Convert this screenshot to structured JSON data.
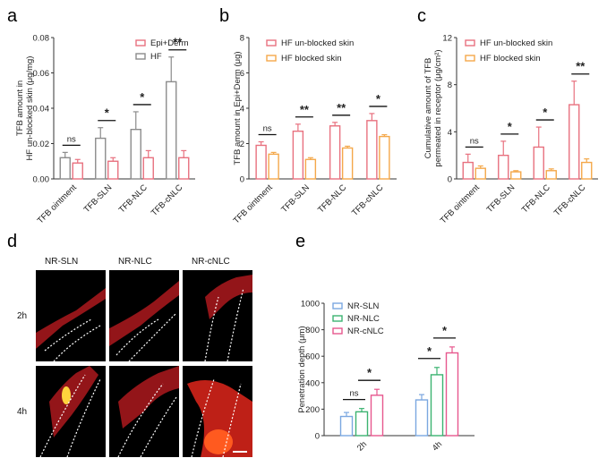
{
  "panel_letters": [
    "a",
    "b",
    "c",
    "d",
    "e"
  ],
  "colors": {
    "red": "#e8717f",
    "gray": "#8c8c8c",
    "orange": "#f4a84a",
    "blue": "#7ba7e0",
    "green": "#3cb371",
    "pink": "#e7578e"
  },
  "chart_data": [
    {
      "panel": "a",
      "type": "bar",
      "categories": [
        "TFB ointment",
        "TFB-SLN",
        "TFB-NLC",
        "TFB-cNLC"
      ],
      "series": [
        {
          "name": "HF",
          "values": [
            0.012,
            0.023,
            0.028,
            0.055
          ],
          "errors": [
            0.003,
            0.006,
            0.01,
            0.014
          ],
          "color": "gray"
        },
        {
          "name": "Epi+Derm",
          "values": [
            0.009,
            0.01,
            0.012,
            0.012
          ],
          "errors": [
            0.002,
            0.002,
            0.004,
            0.004
          ],
          "color": "red"
        }
      ],
      "legend": [
        "Epi+Derm",
        "HF"
      ],
      "legend_colors": [
        "red",
        "gray"
      ],
      "ylabel_lines": [
        "TFB amount in",
        "HF un-blocked skin (μg/mg)"
      ],
      "xlabel": "",
      "ylim": [
        0,
        0.08
      ],
      "yticks": [
        "0.00",
        "0.02",
        "0.04",
        "0.06",
        "0.08"
      ],
      "significance": [
        "ns",
        "*",
        "*",
        "**"
      ],
      "legend_placement": "top-right"
    },
    {
      "panel": "b",
      "type": "bar",
      "categories": [
        "TFB ointment",
        "TFB-SLN",
        "TFB-NLC",
        "TFB-cNLC"
      ],
      "series": [
        {
          "name": "HF un-blocked skin",
          "values": [
            1.9,
            2.7,
            3.0,
            3.3
          ],
          "errors": [
            0.2,
            0.4,
            0.2,
            0.4
          ],
          "color": "red"
        },
        {
          "name": "HF blocked skin",
          "values": [
            1.4,
            1.1,
            1.75,
            2.4
          ],
          "errors": [
            0.1,
            0.1,
            0.1,
            0.1
          ],
          "color": "orange"
        }
      ],
      "legend": [
        "HF un-blocked skin",
        "HF blocked skin"
      ],
      "legend_colors": [
        "red",
        "orange"
      ],
      "ylabel_lines": [
        "TFB amount in Epi+Derm (μg)"
      ],
      "xlabel": "",
      "ylim": [
        0,
        8
      ],
      "yticks": [
        "0",
        "2",
        "4",
        "6",
        "8"
      ],
      "significance": [
        "ns",
        "**",
        "**",
        "*"
      ],
      "legend_placement": "top-right"
    },
    {
      "panel": "c",
      "type": "bar",
      "categories": [
        "TFB ointment",
        "TFB-SLN",
        "TFB-NLC",
        "TFB-cNLC"
      ],
      "series": [
        {
          "name": "HF un-blocked skin",
          "values": [
            1.4,
            2.0,
            2.7,
            6.3
          ],
          "errors": [
            0.7,
            1.2,
            1.7,
            2.0
          ],
          "color": "red"
        },
        {
          "name": "HF blocked skin",
          "values": [
            0.9,
            0.6,
            0.7,
            1.4
          ],
          "errors": [
            0.2,
            0.1,
            0.15,
            0.3
          ],
          "color": "orange"
        }
      ],
      "legend": [
        "HF un-blocked skin",
        "HF blocked skin"
      ],
      "legend_colors": [
        "red",
        "orange"
      ],
      "ylabel_lines": [
        "Cumulative amount of TFB",
        "permeated in receptor (μg/cm²)"
      ],
      "xlabel": "",
      "ylim": [
        0,
        12
      ],
      "yticks": [
        "0",
        "4",
        "8",
        "12"
      ],
      "significance": [
        "ns",
        "*",
        "*",
        "**"
      ],
      "legend_placement": "top-right"
    },
    {
      "panel": "e",
      "type": "bar",
      "categories": [
        "2h",
        "4h"
      ],
      "series": [
        {
          "name": "NR-SLN",
          "values": [
            145,
            270
          ],
          "errors": [
            30,
            40
          ],
          "color": "blue"
        },
        {
          "name": "NR-NLC",
          "values": [
            180,
            460
          ],
          "errors": [
            25,
            55
          ],
          "color": "green"
        },
        {
          "name": "NR-cNLC",
          "values": [
            305,
            625
          ],
          "errors": [
            45,
            45
          ],
          "color": "pink"
        }
      ],
      "legend": [
        "NR-SLN",
        "NR-NLC",
        "NR-cNLC"
      ],
      "legend_colors": [
        "blue",
        "green",
        "pink"
      ],
      "ylabel_lines": [
        "Penetration depth (μm)"
      ],
      "xlabel": "",
      "ylim": [
        0,
        1000
      ],
      "yticks": [
        "0",
        "200",
        "400",
        "600",
        "800",
        "1000"
      ],
      "significance_2h": [
        "ns",
        "*"
      ],
      "significance_4h": [
        "*",
        "*"
      ],
      "legend_placement": "top-left"
    }
  ],
  "micrographs": {
    "columns": [
      "NR-SLN",
      "NR-NLC",
      "NR-cNLC"
    ],
    "rows": [
      "2h",
      "4h"
    ]
  }
}
